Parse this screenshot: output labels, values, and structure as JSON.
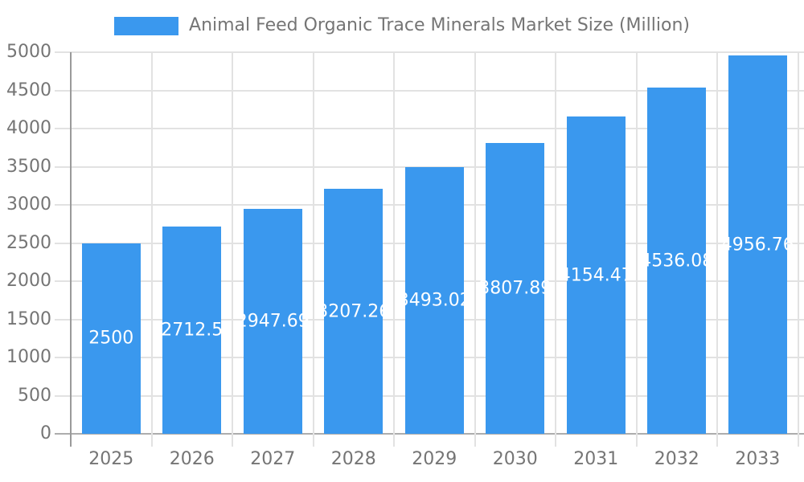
{
  "chart_data": {
    "type": "bar",
    "title": "Animal Feed Organic Trace Minerals Market Size (Million)",
    "legend": {
      "label": "Animal Feed Organic Trace Minerals Market Size (Million)",
      "position": "top"
    },
    "categories": [
      "2025",
      "2026",
      "2027",
      "2028",
      "2029",
      "2030",
      "2031",
      "2032",
      "2033"
    ],
    "series": [
      {
        "name": "Animal Feed Organic Trace Minerals Market Size (Million)",
        "values": [
          2500,
          2712.5,
          2947.69,
          3207.26,
          3493.02,
          3807.89,
          4154.47,
          4536.08,
          4956.76
        ]
      }
    ],
    "value_labels": [
      "2500",
      "2712.5",
      "2947.69",
      "3207.26",
      "3493.02",
      "3807.89",
      "4154.47",
      "4536.08",
      "4956.76"
    ],
    "xlabel": "",
    "ylabel": "",
    "ylim": [
      0,
      5000
    ],
    "yticks": [
      0,
      500,
      1000,
      1500,
      2000,
      2500,
      3000,
      3500,
      4000,
      4500,
      5000
    ],
    "grid": true,
    "colors": {
      "bar": "#3A98EE",
      "grid": "#E2E2E2",
      "zero_line": "#ADADAD",
      "axis": "#9A9A9A",
      "tick_text": "#757575",
      "value_text": "#FFFFFF",
      "background": "#FFFFFF"
    }
  }
}
